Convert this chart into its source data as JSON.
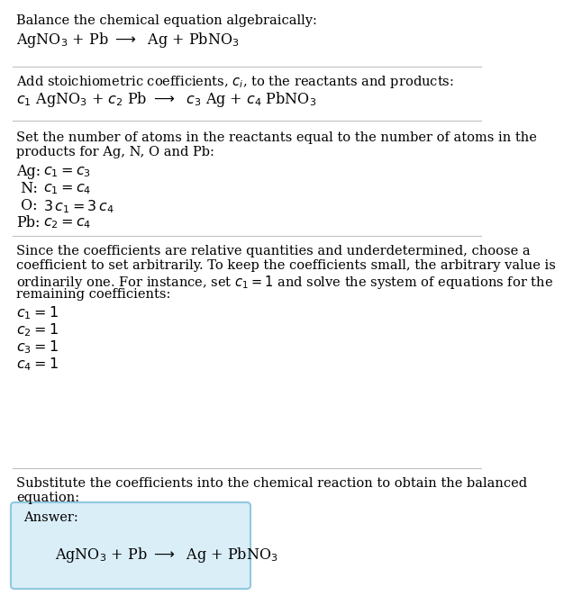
{
  "title_line": "Balance the chemical equation algebraically:",
  "equation1": "AgNO$_3$ + Pb $\\longrightarrow$  Ag + PbNO$_3$",
  "section2_title": "Add stoichiometric coefficients, $c_i$, to the reactants and products:",
  "equation2": "$c_1$ AgNO$_3$ + $c_2$ Pb $\\longrightarrow$  $c_3$ Ag + $c_4$ PbNO$_3$",
  "section3_line1": "Set the number of atoms in the reactants equal to the number of atoms in the",
  "section3_line2": "products for Ag, N, O and Pb:",
  "atoms": [
    [
      "Ag:",
      "$c_1 = c_3$"
    ],
    [
      " N:",
      "$c_1 = c_4$"
    ],
    [
      " O:",
      "$3\\,c_1 = 3\\,c_4$"
    ],
    [
      "Pb:",
      "$c_2 = c_4$"
    ]
  ],
  "section4_line1": "Since the coefficients are relative quantities and underdetermined, choose a",
  "section4_line2": "coefficient to set arbitrarily. To keep the coefficients small, the arbitrary value is",
  "section4_line3": "ordinarily one. For instance, set $c_1 = 1$ and solve the system of equations for the",
  "section4_line4": "remaining coefficients:",
  "coefficients": [
    "$c_1 = 1$",
    "$c_2 = 1$",
    "$c_3 = 1$",
    "$c_4 = 1$"
  ],
  "section5_line1": "Substitute the coefficients into the chemical reaction to obtain the balanced",
  "section5_line2": "equation:",
  "answer_label": "Answer:",
  "answer_equation": "AgNO$_3$ + Pb $\\longrightarrow$  Ag + PbNO$_3$",
  "bg_color": "#ffffff",
  "text_color": "#000000",
  "separator_color": "#c0c0c0",
  "answer_box_facecolor": "#daeef8",
  "answer_box_edgecolor": "#90c8e0",
  "body_fontsize": 10.5,
  "eq_fontsize": 11.5
}
